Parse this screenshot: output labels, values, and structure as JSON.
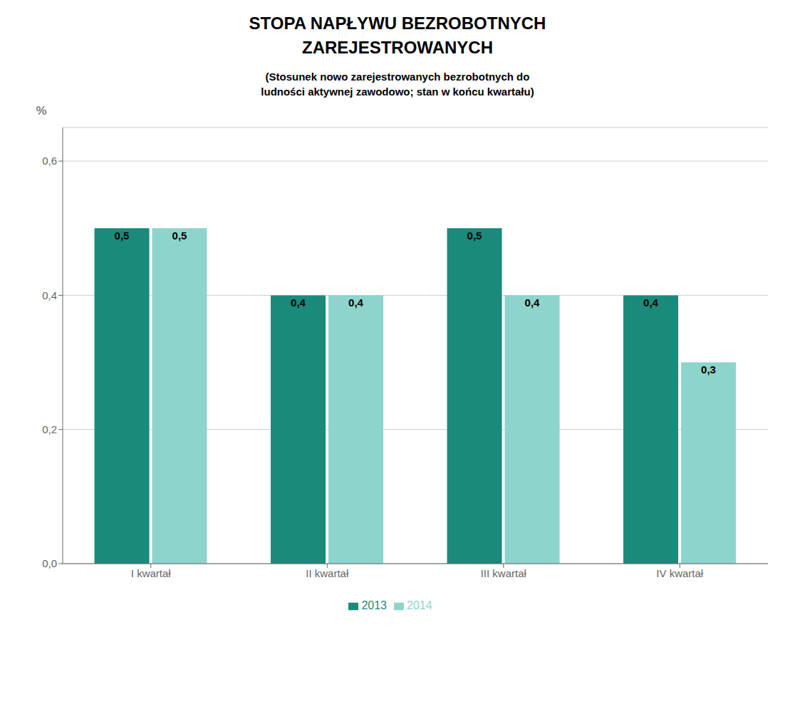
{
  "chart_data": {
    "type": "bar",
    "title": "STOPA NAPŁYWU BEZROBOTNYCH\nZAREJESTROWANYCH",
    "subtitle": "(Stosunek nowo zarejestrowanych bezrobotnych do\nludności aktywnej zawodowo; stan w końcu kwartału)",
    "ylabel": "%",
    "categories": [
      "I kwartał",
      "II kwartał",
      "III kwartał",
      "IV kwartał"
    ],
    "series": [
      {
        "name": "2013",
        "color": "#1a8a7a",
        "values": [
          0.5,
          0.4,
          0.5,
          0.4
        ],
        "value_labels": [
          "0,5",
          "0,4",
          "0,5",
          "0,4"
        ]
      },
      {
        "name": "2014",
        "color": "#8dd4cc",
        "values": [
          0.5,
          0.4,
          0.4,
          0.3
        ],
        "value_labels": [
          "0,5",
          "0,4",
          "0,4",
          "0,3"
        ]
      }
    ],
    "ylim": [
      0,
      0.65
    ],
    "yticks": [
      {
        "value": 0.0,
        "label": "0,0"
      },
      {
        "value": 0.2,
        "label": "0,2"
      },
      {
        "value": 0.4,
        "label": "0,4"
      },
      {
        "value": 0.6,
        "label": "0,6"
      }
    ],
    "grid": true,
    "legend": "bottom",
    "data_labels": true
  }
}
